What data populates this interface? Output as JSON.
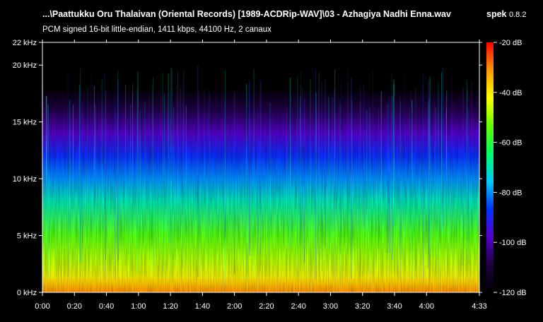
{
  "header": {
    "file_title": "...\\Paattukku Oru Thalaivan (Oriental Records) [1989-ACDRip-WAV]\\03 - Azhagiya Nadhi Enna.wav",
    "app_name": "spek",
    "app_version": "0.8.2",
    "stream_info": "PCM signed 16-bit little-endian, 1411 kbps, 44100 Hz, 2 canaux"
  },
  "chart_data": {
    "type": "heatmap",
    "x_axis": {
      "unit": "time (m:ss)",
      "range_seconds": [
        0,
        273
      ],
      "ticks": [
        {
          "label": "0:00",
          "value": 0
        },
        {
          "label": "0:20",
          "value": 20
        },
        {
          "label": "0:40",
          "value": 40
        },
        {
          "label": "1:00",
          "value": 60
        },
        {
          "label": "1:20",
          "value": 80
        },
        {
          "label": "1:40",
          "value": 100
        },
        {
          "label": "2:00",
          "value": 120
        },
        {
          "label": "2:20",
          "value": 140
        },
        {
          "label": "2:40",
          "value": 160
        },
        {
          "label": "3:00",
          "value": 180
        },
        {
          "label": "3:20",
          "value": 200
        },
        {
          "label": "3:40",
          "value": 220
        },
        {
          "label": "4:00",
          "value": 240
        },
        {
          "label": "4:33",
          "value": 273
        }
      ]
    },
    "y_axis": {
      "unit": "kHz",
      "range": [
        0,
        22
      ],
      "ticks": [
        {
          "label": "0 kHz",
          "value": 0
        },
        {
          "label": "5 kHz",
          "value": 5
        },
        {
          "label": "10 kHz",
          "value": 10
        },
        {
          "label": "15 kHz",
          "value": 15
        },
        {
          "label": "20 kHz",
          "value": 20
        },
        {
          "label": "22 kHz",
          "value": 22
        }
      ]
    },
    "color_scale": {
      "unit": "dB",
      "range": [
        -120,
        -20
      ],
      "ticks": [
        {
          "label": "-20 dB",
          "value": -20
        },
        {
          "label": "-40 dB",
          "value": -40
        },
        {
          "label": "-60 dB",
          "value": -60
        },
        {
          "label": "-80 dB",
          "value": -80
        },
        {
          "label": "-100 dB",
          "value": -100
        },
        {
          "label": "-120 dB",
          "value": -120
        }
      ],
      "colors": [
        "#ff0000",
        "#ff9900",
        "#ffff00",
        "#66ff00",
        "#00ff66",
        "#00ccff",
        "#0033ff",
        "#5500cc",
        "#1e0040",
        "#000000"
      ]
    },
    "spectral_profile": {
      "cutoff_khz_approx": 16,
      "description_levels_by_khz": [
        {
          "khz": 0,
          "db": -25
        },
        {
          "khz": 1,
          "db": -40
        },
        {
          "khz": 3,
          "db": -48
        },
        {
          "khz": 5,
          "db": -55
        },
        {
          "khz": 8,
          "db": -70
        },
        {
          "khz": 10,
          "db": -80
        },
        {
          "khz": 12,
          "db": -88
        },
        {
          "khz": 14,
          "db": -98
        },
        {
          "khz": 16,
          "db": -108
        },
        {
          "khz": 18,
          "db": -120
        }
      ]
    }
  }
}
